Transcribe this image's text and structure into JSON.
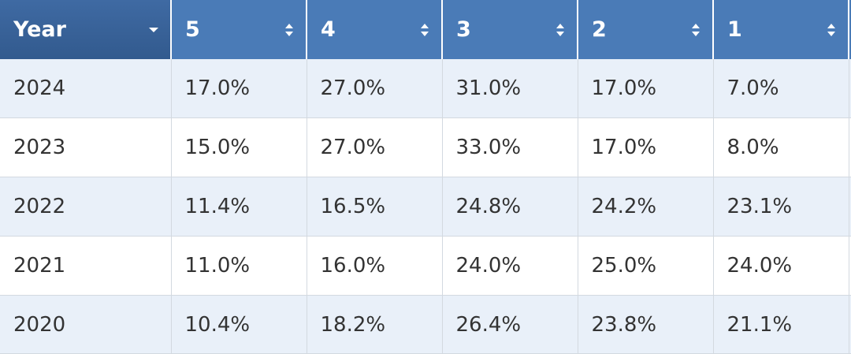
{
  "table": {
    "header": [
      "Year",
      "5",
      "4",
      "3",
      "2",
      "1"
    ],
    "rows": [
      [
        "2024",
        "17.0%",
        "27.0%",
        "31.0%",
        "17.0%",
        "7.0%"
      ],
      [
        "2023",
        "15.0%",
        "27.0%",
        "33.0%",
        "17.0%",
        "8.0%"
      ],
      [
        "2022",
        "11.4%",
        "16.5%",
        "24.8%",
        "24.2%",
        "23.1%"
      ],
      [
        "2021",
        "11.0%",
        "16.0%",
        "24.0%",
        "25.0%",
        "24.0%"
      ],
      [
        "2020",
        "10.4%",
        "18.2%",
        "26.4%",
        "23.8%",
        "21.1%"
      ]
    ]
  }
}
